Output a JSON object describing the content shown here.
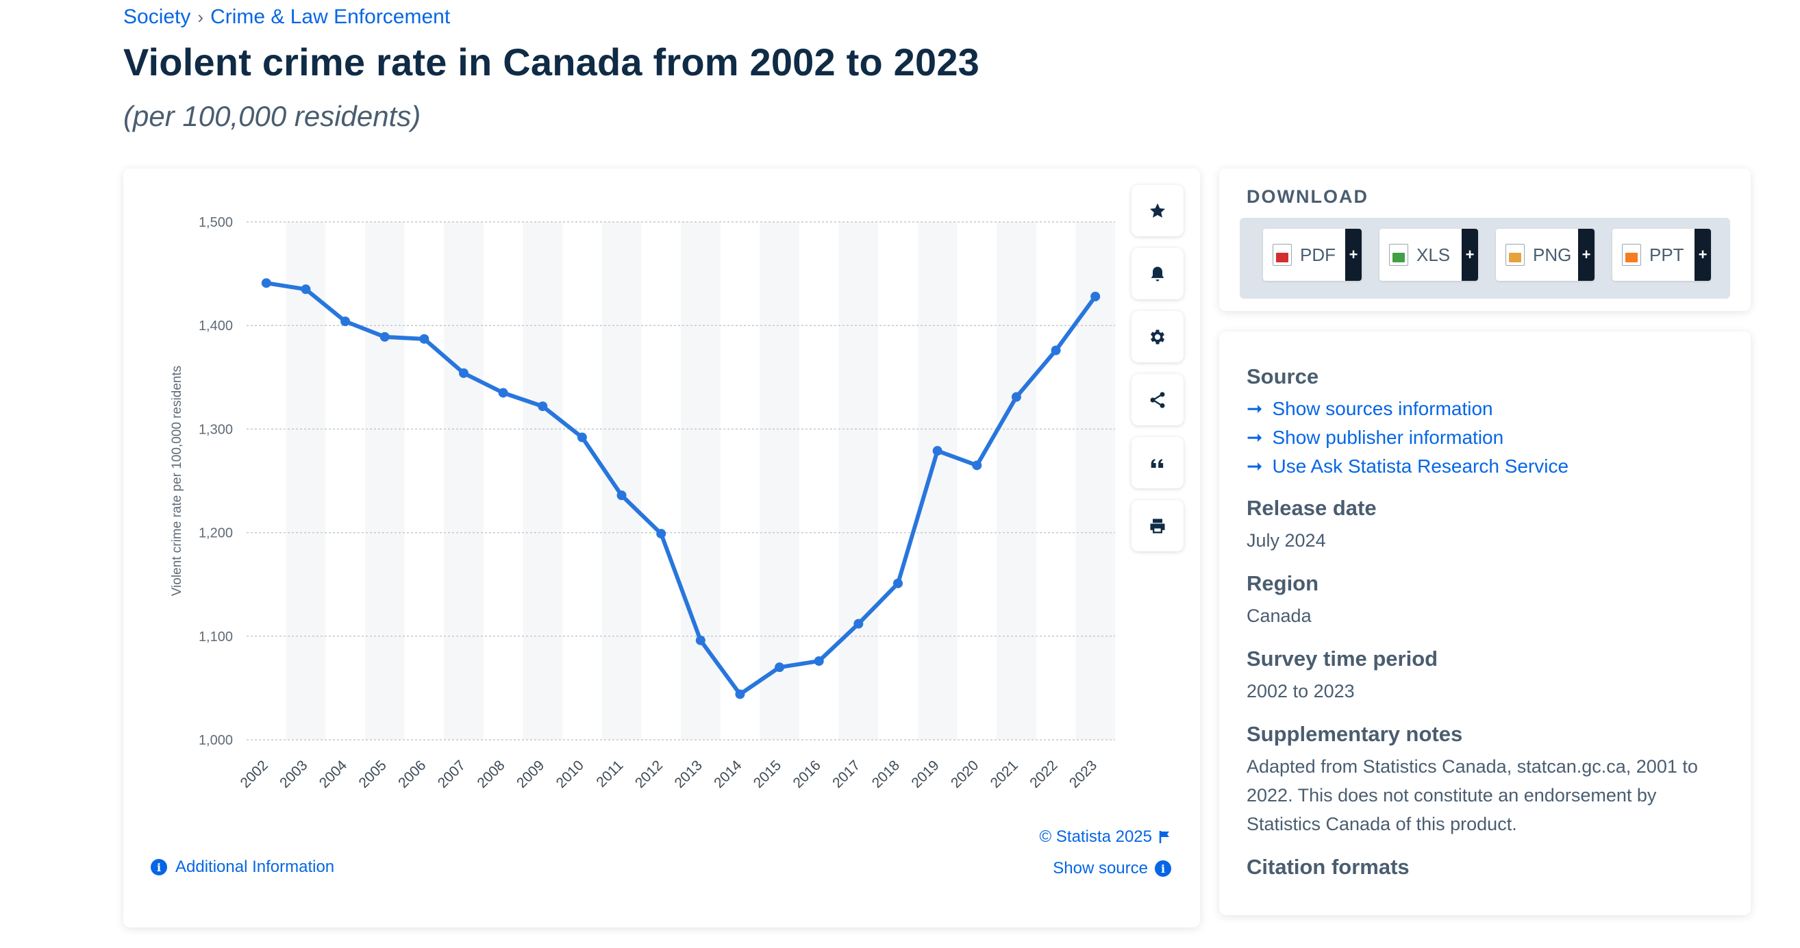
{
  "breadcrumb": {
    "level1": "Society",
    "level2": "Crime & Law Enforcement",
    "separator": "›"
  },
  "header": {
    "title": "Violent crime rate in Canada from 2002 to 2023",
    "subtitle": "(per 100,000 residents)"
  },
  "chart_data": {
    "type": "line",
    "title": "Violent crime rate in Canada from 2002 to 2023",
    "xlabel": "",
    "ylabel": "Violent crime rate per 100,000 residents",
    "ylim": [
      1000,
      1500
    ],
    "yticks": [
      1000,
      1100,
      1200,
      1300,
      1400,
      1500
    ],
    "ytick_labels": [
      "1,000",
      "1,100",
      "1,200",
      "1,300",
      "1,400",
      "1,500"
    ],
    "categories": [
      "2002",
      "2003",
      "2004",
      "2005",
      "2006",
      "2007",
      "2008",
      "2009",
      "2010",
      "2011",
      "2012",
      "2013",
      "2014",
      "2015",
      "2016",
      "2017",
      "2018",
      "2019",
      "2020",
      "2021",
      "2022",
      "2023"
    ],
    "series": [
      {
        "name": "Violent crime rate",
        "color": "#2876dd",
        "values": [
          1441,
          1435,
          1404,
          1389,
          1387,
          1354,
          1335,
          1322,
          1292,
          1236,
          1199,
          1096,
          1044,
          1070,
          1076,
          1112,
          1151,
          1279,
          1265,
          1331,
          1376,
          1428
        ]
      }
    ],
    "grid": true,
    "band_color": "#f6f7f8"
  },
  "toolbar": [
    "star-icon",
    "bell-icon",
    "gear-icon",
    "share-icon",
    "quote-icon",
    "print-icon"
  ],
  "chart_footer": {
    "credit": "© Statista 2025",
    "show_source": "Show source",
    "additional_info": "Additional Information"
  },
  "download": {
    "title": "DOWNLOAD",
    "buttons": [
      {
        "label": "PDF",
        "color": "#d32f2f"
      },
      {
        "label": "XLS",
        "color": "#43a047"
      },
      {
        "label": "PNG",
        "color": "#e6a23c"
      },
      {
        "label": "PPT",
        "color": "#f57c1f"
      }
    ],
    "plus": "+"
  },
  "info": {
    "source_heading": "Source",
    "links": [
      "Show sources information",
      "Show publisher information",
      "Use Ask Statista Research Service"
    ],
    "release_heading": "Release date",
    "release_value": "July 2024",
    "region_heading": "Region",
    "region_value": "Canada",
    "period_heading": "Survey time period",
    "period_value": "2002 to 2023",
    "notes_heading": "Supplementary notes",
    "notes_value": "Adapted from Statistics Canada, statcan.gc.ca, 2001 to 2022. This does not constitute an endorsement by Statistics Canada of this product.",
    "citation_heading": "Citation formats"
  },
  "colors": {
    "accent": "#0666e5",
    "line": "#2876dd",
    "text": "#0f2b46"
  }
}
